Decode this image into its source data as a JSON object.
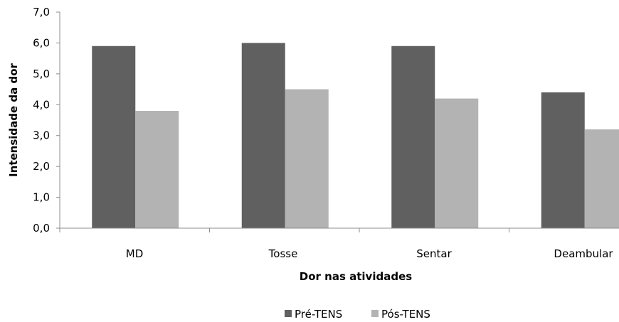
{
  "chart_data": {
    "type": "bar",
    "categories": [
      "MD",
      "Tosse",
      "Sentar",
      "Deambular"
    ],
    "series": [
      {
        "name": "Pré-TENS",
        "values": [
          5.9,
          6.0,
          5.9,
          4.4
        ],
        "color": "#606060"
      },
      {
        "name": "Pós-TENS",
        "values": [
          3.8,
          4.5,
          4.2,
          3.2
        ],
        "color": "#b3b3b3"
      }
    ],
    "title": "",
    "xlabel": "Dor nas atividades",
    "ylabel": "Intensidade da dor",
    "ylim": [
      0,
      7
    ],
    "yticks": [
      "0,0",
      "1,0",
      "2,0",
      "3,0",
      "4,0",
      "5,0",
      "6,0",
      "7,0"
    ],
    "grid": false,
    "legend_position": "bottom"
  }
}
